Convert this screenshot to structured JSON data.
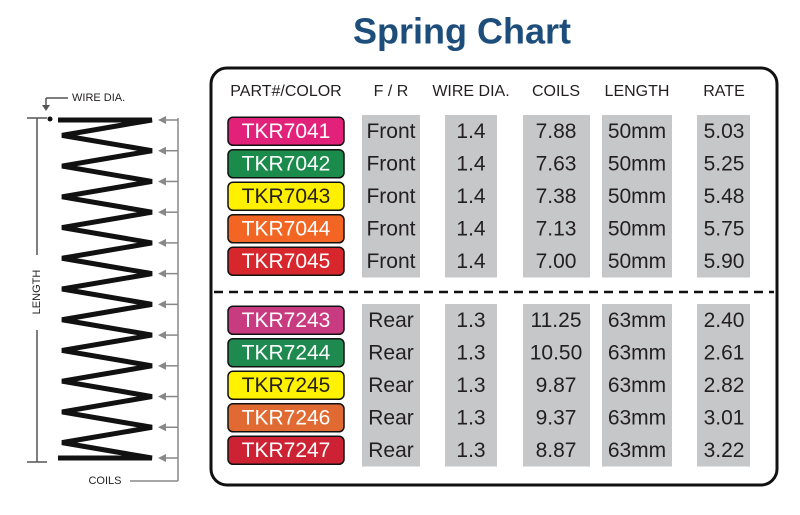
{
  "title": "Spring Chart",
  "diagram": {
    "wire_dia": "WIRE DIA.",
    "length": "LENGTH",
    "coils": "COILS"
  },
  "table": {
    "headers": [
      "PART#/COLOR",
      "F / R",
      "WIRE DIA.",
      "COILS",
      "LENGTH",
      "RATE"
    ],
    "groups": [
      {
        "rows": [
          {
            "part": "TKR7041",
            "color": "#e2217b",
            "text_color": "#ffffff",
            "cells": [
              "Front",
              "1.4",
              "7.88",
              "50mm",
              "5.03"
            ]
          },
          {
            "part": "TKR7042",
            "color": "#1b8b4c",
            "text_color": "#ffffff",
            "cells": [
              "Front",
              "1.4",
              "7.63",
              "50mm",
              "5.25"
            ]
          },
          {
            "part": "TKR7043",
            "color": "#fff000",
            "text_color": "#231f20",
            "cells": [
              "Front",
              "1.4",
              "7.38",
              "50mm",
              "5.48"
            ]
          },
          {
            "part": "TKR7044",
            "color": "#f26522",
            "text_color": "#ffffff",
            "cells": [
              "Front",
              "1.4",
              "7.13",
              "50mm",
              "5.75"
            ]
          },
          {
            "part": "TKR7045",
            "color": "#d7262c",
            "text_color": "#ffffff",
            "cells": [
              "Front",
              "1.4",
              "7.00",
              "50mm",
              "5.90"
            ]
          }
        ]
      },
      {
        "rows": [
          {
            "part": "TKR7243",
            "color": "#c93b80",
            "text_color": "#ffffff",
            "cells": [
              "Rear",
              "1.3",
              "11.25",
              "63mm",
              "2.40"
            ]
          },
          {
            "part": "TKR7244",
            "color": "#1f8a50",
            "text_color": "#ffffff",
            "cells": [
              "Rear",
              "1.3",
              "10.50",
              "63mm",
              "2.61"
            ]
          },
          {
            "part": "TKR7245",
            "color": "#fff200",
            "text_color": "#231f20",
            "cells": [
              "Rear",
              "1.3",
              "9.87",
              "63mm",
              "2.82"
            ]
          },
          {
            "part": "TKR7246",
            "color": "#e06a32",
            "text_color": "#ffffff",
            "cells": [
              "Rear",
              "1.3",
              "9.37",
              "63mm",
              "3.01"
            ]
          },
          {
            "part": "TKR7247",
            "color": "#cc2233",
            "text_color": "#ffffff",
            "cells": [
              "Rear",
              "1.3",
              "8.87",
              "63mm",
              "3.22"
            ]
          }
        ]
      }
    ]
  }
}
